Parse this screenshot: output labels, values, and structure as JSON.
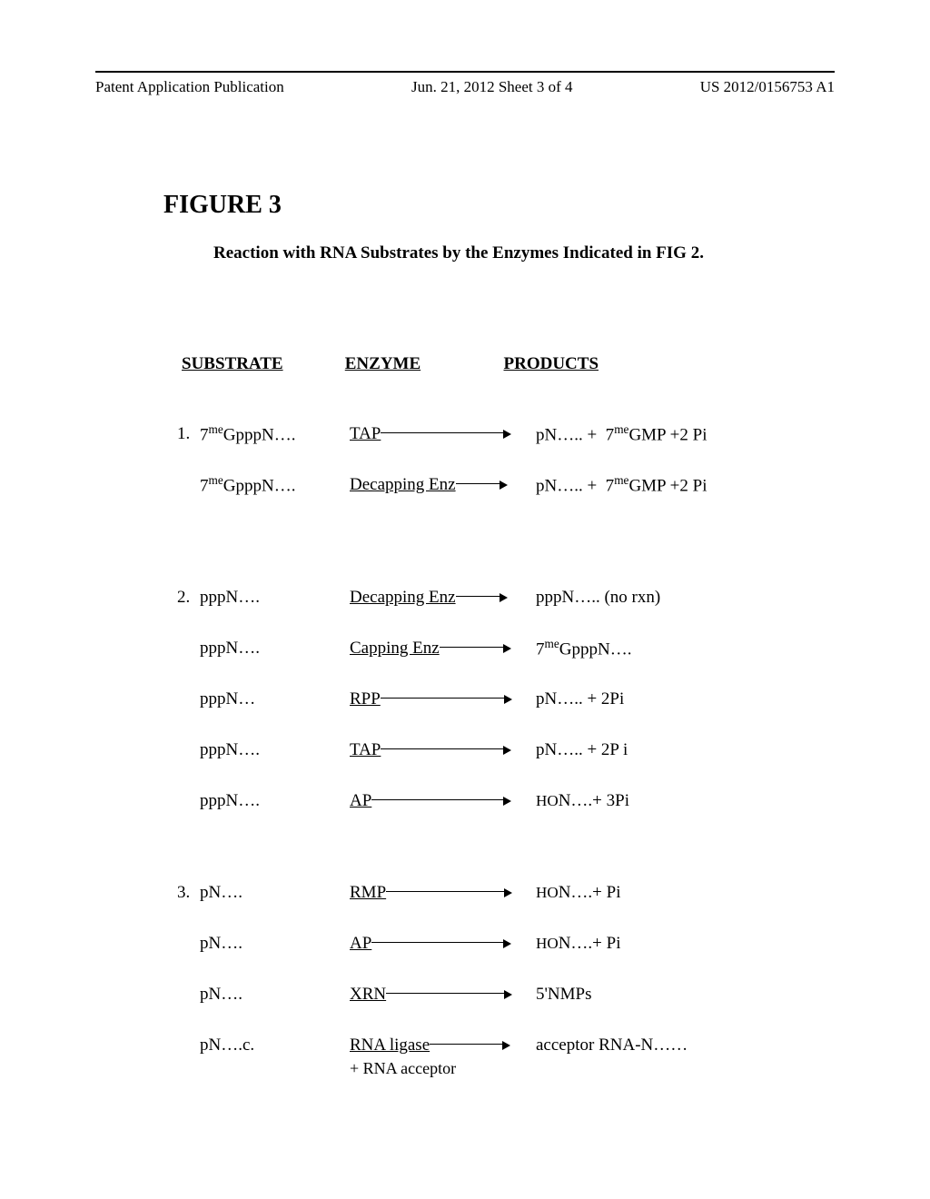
{
  "header": {
    "left": "Patent Application Publication",
    "center": "Jun. 21, 2012  Sheet 3 of 4",
    "right": "US 2012/0156753 A1"
  },
  "figure": {
    "title": "FIGURE 3",
    "subtitle": "Reaction with RNA Substrates by the Enzymes Indicated in FIG 2."
  },
  "headers": {
    "substrate": "SUBSTRATE",
    "enzyme": "ENZYME",
    "products": "PRODUCTS"
  },
  "g1": {
    "r1": {
      "num": "1.",
      "sub": "7ᵐᵉGpppN….",
      "enz": "TAP",
      "line_w": 135,
      "prod": "pN….. +  7ᵐᵉGMP +2 Pi"
    },
    "r2": {
      "num": "",
      "sub": "7ᵐᵉGpppN….",
      "enz": "Decapping Enz",
      "line_w": 48,
      "prod": "pN….. +  7ᵐᵉGMP +2 Pi"
    }
  },
  "g2": {
    "r1": {
      "num": "2.",
      "sub": "pppN….",
      "enz": "Decapping Enz",
      "line_w": 48,
      "prod": "pppN…..   (no rxn)"
    },
    "r2": {
      "num": "",
      "sub": "pppN….",
      "enz": "Capping Enz",
      "line_w": 70,
      "prod": "7ᵐᵉGpppN…."
    },
    "r3": {
      "num": "",
      "sub": "pppN…",
      "enz": "RPP",
      "line_w": 136,
      "prod": "pN….. + 2Pi"
    },
    "r4": {
      "num": "",
      "sub": "pppN….",
      "enz": "TAP",
      "line_w": 135,
      "prod": "pN….. + 2P i"
    },
    "r5": {
      "num": "",
      "sub": "pppN….",
      "enz": "AP",
      "line_w": 145,
      "prod": "HON….+ 3Pi"
    }
  },
  "g3": {
    "r1": {
      "num": "3.",
      "sub": "pN….",
      "enz": "RMP",
      "line_w": 130,
      "prod": "HON….+ Pi"
    },
    "r2": {
      "num": "",
      "sub": "pN….",
      "enz": "AP",
      "line_w": 145,
      "prod": "HON….+ Pi"
    },
    "r3": {
      "num": "",
      "sub": "pN….",
      "enz": "XRN",
      "line_w": 130,
      "prod": "5'NMPs"
    },
    "r4": {
      "num": "",
      "sub": "pN….c.",
      "enz": "RNA ligase",
      "line_w": 80,
      "prod": "acceptor RNA-N……",
      "sub2": "+ RNA acceptor"
    }
  }
}
